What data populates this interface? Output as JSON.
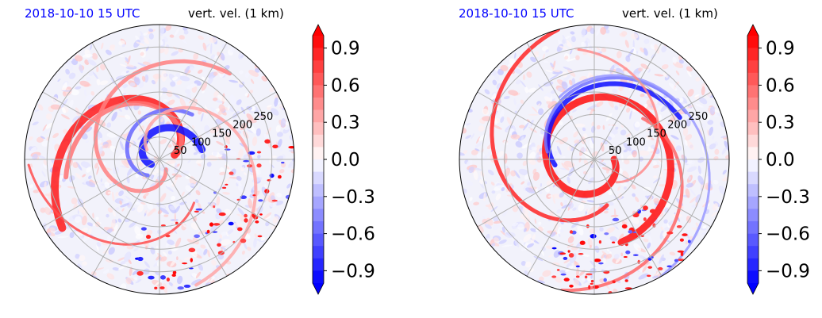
{
  "chart_data": [
    {
      "type": "heatmap",
      "projection": "polar",
      "timestamp": "2018-10-10 15 UTC",
      "title": "vert. vel. (1 km)",
      "radial_ticks": [
        "50",
        "100",
        "150",
        "200",
        "250"
      ],
      "radial_range": [
        0,
        300
      ],
      "grid": true,
      "colormap": "bwr",
      "colorbar": {
        "range": [
          -1.0,
          1.0
        ],
        "extend": "both",
        "ticks": [
          "0.9",
          "0.6",
          "0.3",
          "0.0",
          "−0.3",
          "−0.6",
          "−0.9"
        ],
        "location": "right"
      },
      "features": [
        {
          "kind": "negative-band",
          "description_value": -1.0
        },
        {
          "kind": "positive-band",
          "description_value": 1.0
        }
      ]
    },
    {
      "type": "heatmap",
      "projection": "polar",
      "timestamp": "2018-10-10 15 UTC",
      "title": "vert. vel. (1 km)",
      "radial_ticks": [
        "50",
        "100",
        "150",
        "200",
        "250"
      ],
      "radial_range": [
        0,
        300
      ],
      "grid": true,
      "colormap": "bwr",
      "colorbar": {
        "range": [
          -1.0,
          1.0
        ],
        "extend": "both",
        "ticks": [
          "0.9",
          "0.6",
          "0.3",
          "0.0",
          "−0.3",
          "−0.6",
          "−0.9"
        ],
        "location": "right"
      }
    }
  ],
  "colors": {
    "timestamp": "#0000ff",
    "positive_max": "#ff0000",
    "negative_max": "#0000ff",
    "neutral": "#ffffff",
    "grid": "#b0b0b0"
  }
}
